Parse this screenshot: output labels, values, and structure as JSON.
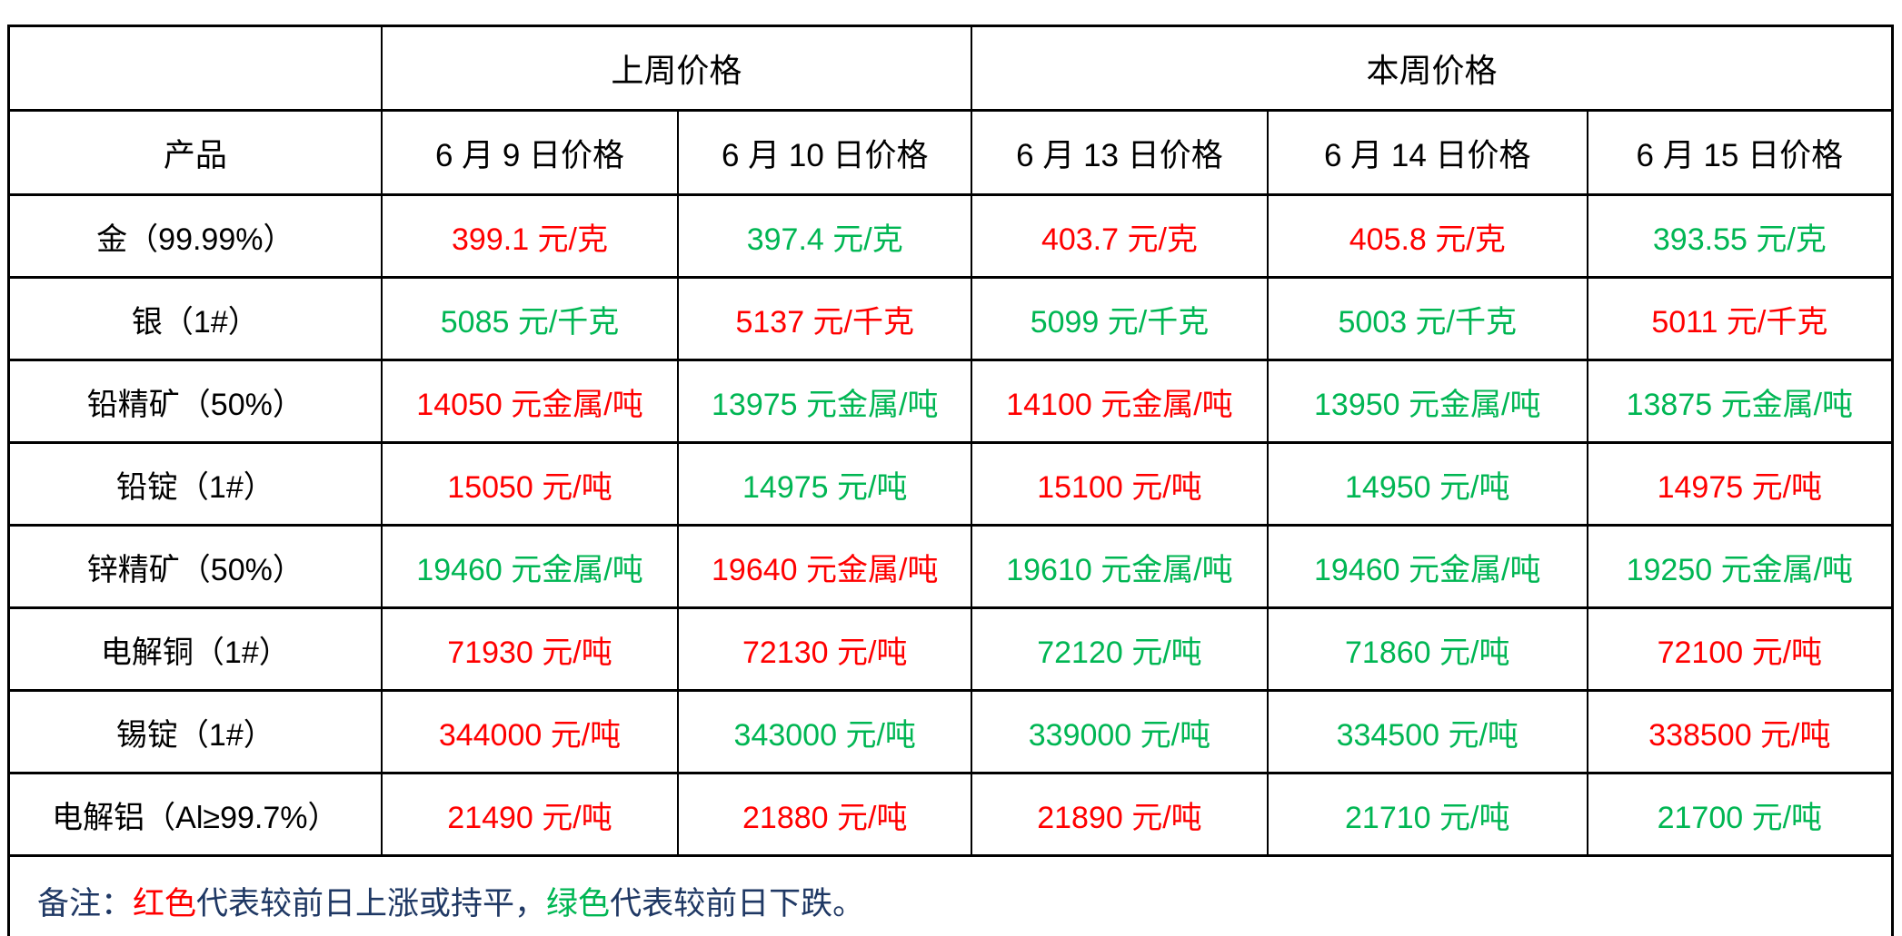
{
  "table": {
    "header_groups": {
      "corner": "",
      "last_week": "上周价格",
      "this_week": "本周价格"
    },
    "product_header": "产品",
    "date_columns": [
      "6 月 9 日价格",
      "6 月 10 日价格",
      "6 月 13 日价格",
      "6 月 14 日价格",
      "6 月 15 日价格"
    ],
    "rows": [
      {
        "product": "金（99.99%）",
        "prices": [
          {
            "text": "399.1 元/克",
            "trend": "up"
          },
          {
            "text": "397.4 元/克",
            "trend": "down"
          },
          {
            "text": "403.7 元/克",
            "trend": "up"
          },
          {
            "text": "405.8 元/克",
            "trend": "up"
          },
          {
            "text": "393.55 元/克",
            "trend": "down"
          }
        ]
      },
      {
        "product": "银（1#）",
        "prices": [
          {
            "text": "5085 元/千克",
            "trend": "down"
          },
          {
            "text": "5137 元/千克",
            "trend": "up"
          },
          {
            "text": "5099 元/千克",
            "trend": "down"
          },
          {
            "text": "5003 元/千克",
            "trend": "down"
          },
          {
            "text": "5011 元/千克",
            "trend": "up"
          }
        ]
      },
      {
        "product": "铅精矿（50%）",
        "prices": [
          {
            "text": "14050 元金属/吨",
            "trend": "up"
          },
          {
            "text": "13975 元金属/吨",
            "trend": "down"
          },
          {
            "text": "14100 元金属/吨",
            "trend": "up"
          },
          {
            "text": "13950 元金属/吨",
            "trend": "down"
          },
          {
            "text": "13875 元金属/吨",
            "trend": "down"
          }
        ]
      },
      {
        "product": "铅锭（1#）",
        "prices": [
          {
            "text": "15050 元/吨",
            "trend": "up"
          },
          {
            "text": "14975 元/吨",
            "trend": "down"
          },
          {
            "text": "15100 元/吨",
            "trend": "up"
          },
          {
            "text": "14950 元/吨",
            "trend": "down"
          },
          {
            "text": "14975 元/吨",
            "trend": "up"
          }
        ]
      },
      {
        "product": "锌精矿（50%）",
        "prices": [
          {
            "text": "19460 元金属/吨",
            "trend": "down"
          },
          {
            "text": "19640 元金属/吨",
            "trend": "up"
          },
          {
            "text": "19610 元金属/吨",
            "trend": "down"
          },
          {
            "text": "19460 元金属/吨",
            "trend": "down"
          },
          {
            "text": "19250 元金属/吨",
            "trend": "down"
          }
        ]
      },
      {
        "product": "电解铜（1#）",
        "prices": [
          {
            "text": "71930 元/吨",
            "trend": "up"
          },
          {
            "text": "72130 元/吨",
            "trend": "up"
          },
          {
            "text": "72120 元/吨",
            "trend": "down"
          },
          {
            "text": "71860 元/吨",
            "trend": "down"
          },
          {
            "text": "72100 元/吨",
            "trend": "up"
          }
        ]
      },
      {
        "product": "锡锭（1#）",
        "prices": [
          {
            "text": "344000 元/吨",
            "trend": "up"
          },
          {
            "text": "343000 元/吨",
            "trend": "down"
          },
          {
            "text": "339000 元/吨",
            "trend": "down"
          },
          {
            "text": "334500 元/吨",
            "trend": "down"
          },
          {
            "text": "338500 元/吨",
            "trend": "up"
          }
        ]
      },
      {
        "product": "电解铝（Al≥99.7%）",
        "prices": [
          {
            "text": "21490 元/吨",
            "trend": "up"
          },
          {
            "text": "21880 元/吨",
            "trend": "up"
          },
          {
            "text": "21890 元/吨",
            "trend": "up"
          },
          {
            "text": "21710 元/吨",
            "trend": "down"
          },
          {
            "text": "21700 元/吨",
            "trend": "down"
          }
        ]
      }
    ]
  },
  "note": {
    "prefix": "备注：",
    "red_term": "红色",
    "red_desc": "代表较前日上涨或持平，",
    "green_term": "绿色",
    "green_desc": "代表较前日下跌。"
  },
  "colors": {
    "up": "#ff0000",
    "down": "#00b653",
    "note_text": "#1f3864",
    "border": "#000000"
  }
}
